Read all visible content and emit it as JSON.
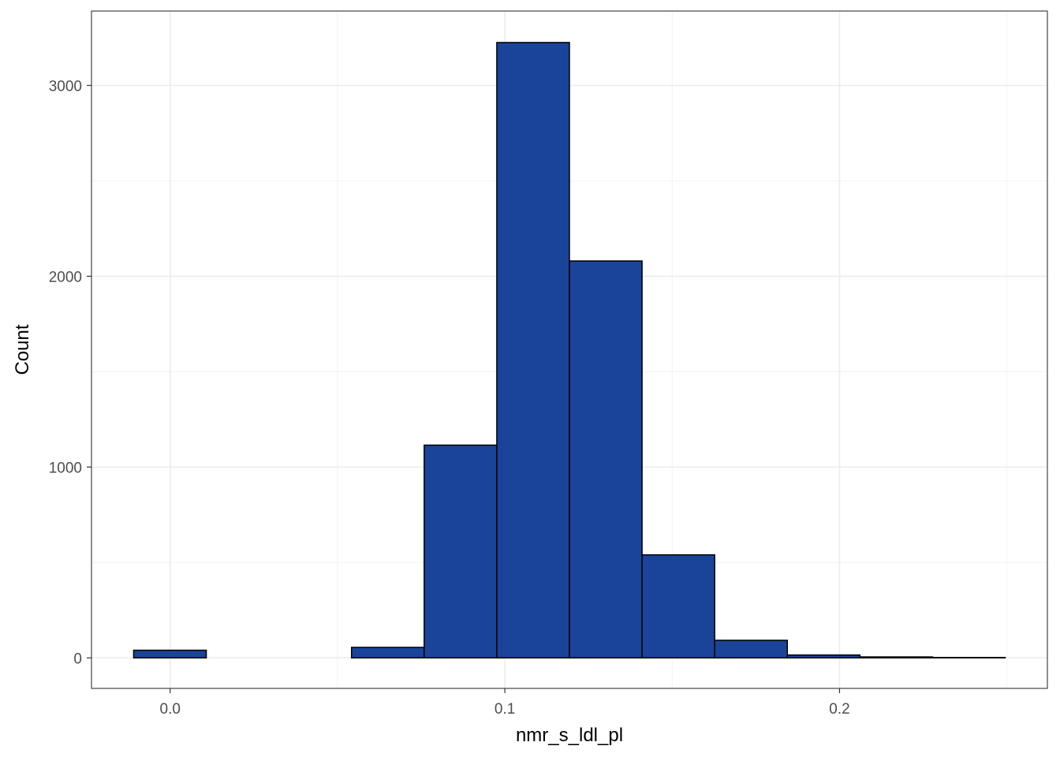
{
  "chart_data": {
    "type": "bar",
    "xlabel": "nmr_s_ldl_pl",
    "ylabel": "Count",
    "bin_width": 0.0217,
    "bins": [
      {
        "x0": -0.0109,
        "x1": 0.0108,
        "count": 40
      },
      {
        "x0": 0.0108,
        "x1": 0.0325,
        "count": 0
      },
      {
        "x0": 0.0325,
        "x1": 0.0542,
        "count": 0
      },
      {
        "x0": 0.0542,
        "x1": 0.0759,
        "count": 55
      },
      {
        "x0": 0.0759,
        "x1": 0.0976,
        "count": 1115
      },
      {
        "x0": 0.0976,
        "x1": 0.1193,
        "count": 3225
      },
      {
        "x0": 0.1193,
        "x1": 0.141,
        "count": 2080
      },
      {
        "x0": 0.141,
        "x1": 0.1627,
        "count": 540
      },
      {
        "x0": 0.1627,
        "x1": 0.1844,
        "count": 92
      },
      {
        "x0": 0.1844,
        "x1": 0.2061,
        "count": 15
      },
      {
        "x0": 0.2061,
        "x1": 0.2278,
        "count": 5
      },
      {
        "x0": 0.2278,
        "x1": 0.2495,
        "count": 2
      }
    ],
    "xlim": [
      -0.0235,
      0.2621
    ],
    "ylim": [
      -160,
      3390
    ],
    "x_ticks": [
      {
        "value": 0.0,
        "label": "0.0"
      },
      {
        "value": 0.1,
        "label": "0.1"
      },
      {
        "value": 0.2,
        "label": "0.2"
      }
    ],
    "x_minor": [
      0.05,
      0.15,
      0.25
    ],
    "y_ticks": [
      {
        "value": 0,
        "label": "0"
      },
      {
        "value": 1000,
        "label": "1000"
      },
      {
        "value": 2000,
        "label": "2000"
      },
      {
        "value": 3000,
        "label": "3000"
      }
    ],
    "y_minor": [
      500,
      1500,
      2500
    ],
    "grid": true,
    "bar_fill": "#1a4499",
    "bar_stroke": "#000000",
    "grid_major_color": "#ebebeb",
    "grid_minor_color": "#f3f3f3",
    "panel_border_color": "#333333"
  }
}
